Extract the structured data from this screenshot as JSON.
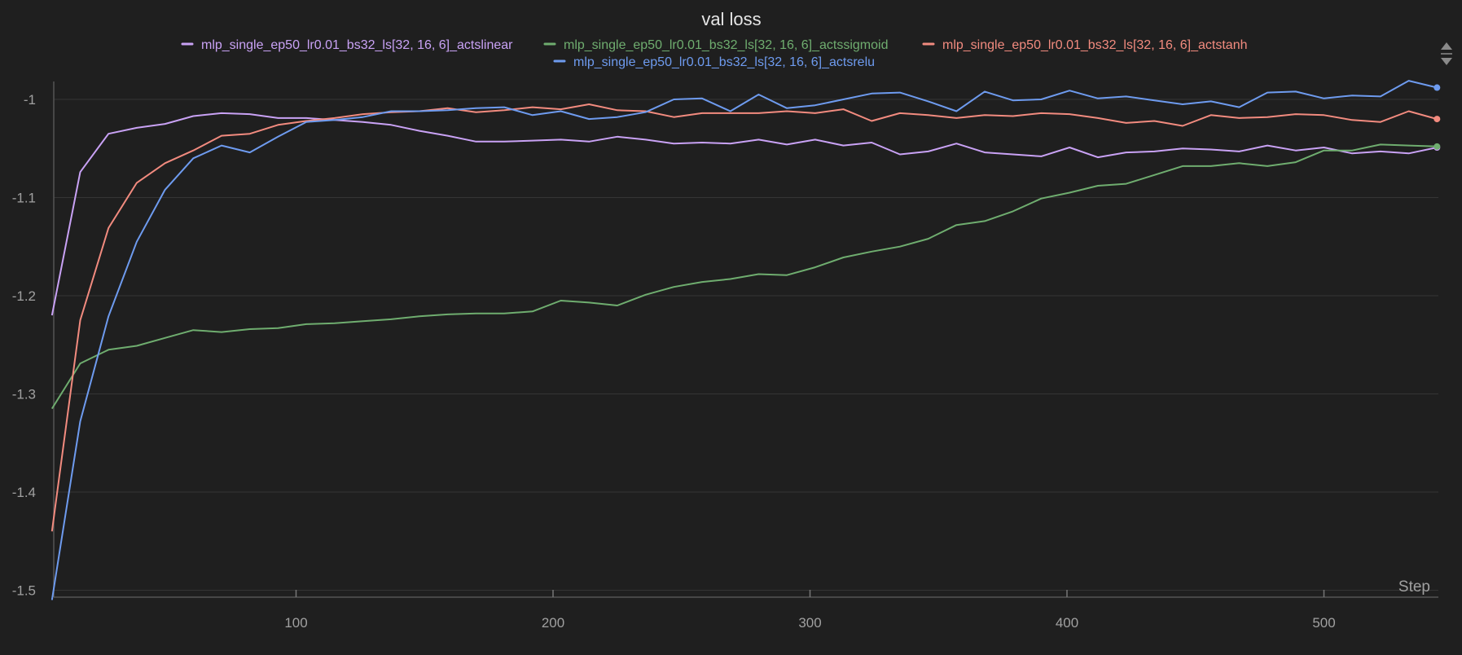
{
  "chart_data": {
    "type": "line",
    "title": "val loss",
    "xlabel": "Step",
    "ylabel": "",
    "xlim": [
      0,
      540
    ],
    "ylim": [
      -1.5,
      -0.97
    ],
    "x_ticks": [
      100,
      200,
      300,
      400,
      500
    ],
    "y_ticks": [
      -1,
      -1.1,
      -1.2,
      -1.3,
      -1.4,
      -1.5
    ],
    "y_tick_labels": [
      "-1",
      "-1.1",
      "-1.2",
      "-1.3",
      "-1.4",
      "-1.5"
    ],
    "grid": true,
    "legend_position": "top",
    "x": [
      5,
      16,
      27,
      38,
      49,
      60,
      71,
      82,
      93,
      104,
      115,
      126,
      137,
      148,
      159,
      170,
      181,
      192,
      203,
      214,
      225,
      236,
      247,
      258,
      269,
      280,
      291,
      302,
      313,
      324,
      335,
      346,
      357,
      368,
      379,
      390,
      401,
      412,
      423,
      434,
      445,
      456,
      467,
      478,
      489,
      500,
      511,
      522,
      533,
      544
    ],
    "series": [
      {
        "name": "mlp_single_ep50_lr0.01_bs32_ls[32, 16, 6]_actslinear",
        "color": "#c9a2f5",
        "values": [
          -1.22,
          -1.074,
          -1.035,
          -1.029,
          -1.025,
          -1.017,
          -1.014,
          -1.015,
          -1.019,
          -1.019,
          -1.021,
          -1.023,
          -1.026,
          -1.032,
          -1.037,
          -1.043,
          -1.043,
          -1.042,
          -1.041,
          -1.043,
          -1.038,
          -1.041,
          -1.045,
          -1.044,
          -1.045,
          -1.041,
          -1.046,
          -1.041,
          -1.047,
          -1.044,
          -1.056,
          -1.053,
          -1.045,
          -1.054,
          -1.056,
          -1.058,
          -1.049,
          -1.059,
          -1.054,
          -1.053,
          -1.05,
          -1.051,
          -1.053,
          -1.047,
          -1.052,
          -1.049,
          -1.055,
          -1.053,
          -1.055,
          -1.049
        ]
      },
      {
        "name": "mlp_single_ep50_lr0.01_bs32_ls[32, 16, 6]_actssigmoid",
        "color": "#6fad6f",
        "values": [
          -1.315,
          -1.269,
          -1.255,
          -1.251,
          -1.243,
          -1.235,
          -1.237,
          -1.234,
          -1.233,
          -1.229,
          -1.228,
          -1.226,
          -1.224,
          -1.221,
          -1.219,
          -1.218,
          -1.218,
          -1.216,
          -1.205,
          -1.207,
          -1.21,
          -1.199,
          -1.191,
          -1.186,
          -1.183,
          -1.178,
          -1.179,
          -1.171,
          -1.161,
          -1.155,
          -1.15,
          -1.142,
          -1.128,
          -1.124,
          -1.114,
          -1.101,
          -1.095,
          -1.088,
          -1.086,
          -1.077,
          -1.068,
          -1.068,
          -1.065,
          -1.068,
          -1.064,
          -1.052,
          -1.052,
          -1.046,
          -1.047,
          -1.048
        ]
      },
      {
        "name": "mlp_single_ep50_lr0.01_bs32_ls[32, 16, 6]_actstanh",
        "color": "#f28b7f",
        "values": [
          -1.44,
          -1.225,
          -1.131,
          -1.085,
          -1.065,
          -1.052,
          -1.037,
          -1.035,
          -1.026,
          -1.022,
          -1.019,
          -1.015,
          -1.013,
          -1.012,
          -1.009,
          -1.013,
          -1.011,
          -1.008,
          -1.01,
          -1.005,
          -1.011,
          -1.012,
          -1.018,
          -1.014,
          -1.014,
          -1.014,
          -1.012,
          -1.014,
          -1.01,
          -1.022,
          -1.014,
          -1.016,
          -1.019,
          -1.016,
          -1.017,
          -1.014,
          -1.015,
          -1.019,
          -1.024,
          -1.022,
          -1.027,
          -1.016,
          -1.019,
          -1.018,
          -1.015,
          -1.016,
          -1.021,
          -1.023,
          -1.012,
          -1.02
        ]
      },
      {
        "name": "mlp_single_ep50_lr0.01_bs32_ls[32, 16, 6]_actsrelu",
        "color": "#6e9bef",
        "values": [
          -1.51,
          -1.328,
          -1.221,
          -1.145,
          -1.092,
          -1.06,
          -1.047,
          -1.054,
          -1.038,
          -1.023,
          -1.021,
          -1.018,
          -1.012,
          -1.012,
          -1.011,
          -1.009,
          -1.008,
          -1.016,
          -1.012,
          -1.02,
          -1.018,
          -1.013,
          -1.0,
          -0.999,
          -1.012,
          -0.995,
          -1.009,
          -1.006,
          -1.0,
          -0.994,
          -0.993,
          -1.002,
          -1.012,
          -0.992,
          -1.001,
          -1.0,
          -0.991,
          -0.999,
          -0.997,
          -1.001,
          -1.005,
          -1.002,
          -1.008,
          -0.993,
          -0.992,
          -0.999,
          -0.996,
          -0.997,
          -0.981,
          -0.988
        ]
      }
    ]
  }
}
